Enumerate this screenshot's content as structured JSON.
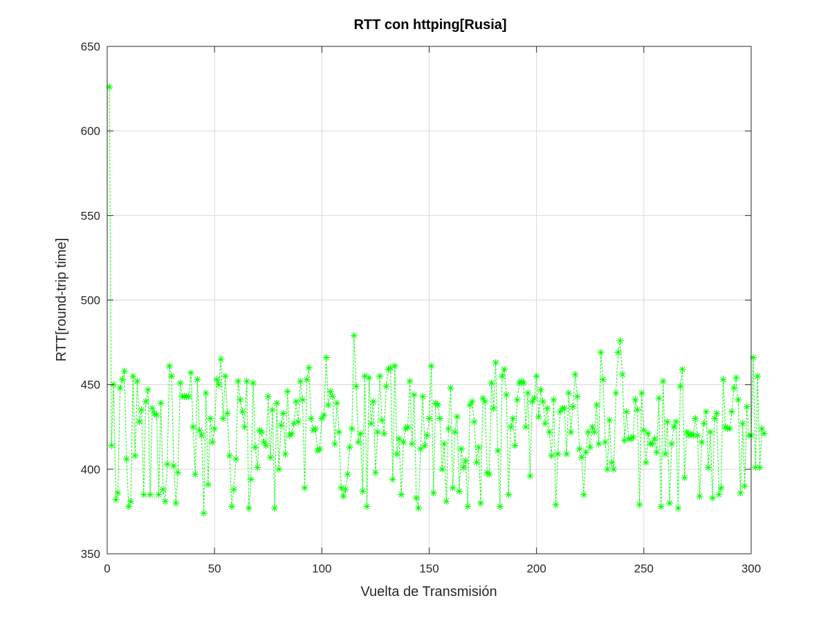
{
  "chart_data": {
    "type": "line",
    "title": "RTT con httping[Rusia]",
    "xlabel": "Vuelta de Transmisión",
    "ylabel": "RTT[round-trip time]",
    "xlim": [
      0,
      300
    ],
    "ylim": [
      350,
      650
    ],
    "xticks": [
      0,
      50,
      100,
      150,
      200,
      250,
      300
    ],
    "yticks": [
      350,
      400,
      450,
      500,
      550,
      600,
      650
    ],
    "grid": true,
    "line_style": "dashed",
    "marker": "asterisk",
    "color": "#00ff00",
    "series": [
      {
        "values": [
          626,
          414,
          450,
          382,
          386,
          448,
          453,
          458,
          406,
          378,
          381,
          455,
          408,
          452,
          428,
          435,
          385,
          440,
          447,
          385,
          436,
          433,
          432,
          385,
          439,
          388,
          381,
          403,
          461,
          455,
          402,
          380,
          398,
          451,
          443,
          443,
          443,
          443,
          457,
          425,
          397,
          453,
          423,
          420,
          374,
          445,
          391,
          430,
          416,
          424,
          453,
          450,
          465,
          430,
          455,
          433,
          408,
          378,
          388,
          406,
          452,
          441,
          434,
          425,
          452,
          377,
          394,
          451,
          413,
          401,
          423,
          422,
          416,
          414,
          443,
          407,
          435,
          377,
          439,
          400,
          426,
          433,
          409,
          446,
          420,
          421,
          427,
          440,
          428,
          452,
          441,
          389,
          453,
          460,
          430,
          423,
          424,
          411,
          412,
          430,
          432,
          466,
          438,
          446,
          443,
          415,
          439,
          422,
          389,
          384,
          388,
          397,
          413,
          424,
          479,
          449,
          416,
          421,
          387,
          455,
          378,
          454,
          427,
          440,
          398,
          422,
          455,
          429,
          421,
          449,
          459,
          460,
          394,
          461,
          409,
          418,
          385,
          416,
          424,
          425,
          452,
          415,
          444,
          383,
          377,
          412,
          443,
          414,
          420,
          430,
          461,
          386,
          439,
          438,
          430,
          400,
          415,
          381,
          424,
          448,
          389,
          422,
          431,
          387,
          412,
          401,
          405,
          378,
          438,
          440,
          428,
          404,
          413,
          380,
          442,
          440,
          398,
          397,
          451,
          436,
          463,
          411,
          378,
          455,
          459,
          444,
          385,
          425,
          430,
          414,
          441,
          451,
          452,
          451,
          425,
          445,
          396,
          440,
          442,
          455,
          431,
          447,
          440,
          427,
          436,
          422,
          408,
          441,
          379,
          409,
          434,
          436,
          436,
          409,
          445,
          422,
          437,
          456,
          443,
          412,
          407,
          385,
          410,
          422,
          413,
          425,
          422,
          438,
          415,
          469,
          453,
          416,
          400,
          429,
          404,
          400,
          445,
          469,
          476,
          456,
          417,
          434,
          418,
          418,
          419,
          441,
          435,
          379,
          445,
          423,
          404,
          421,
          415,
          415,
          418,
          410,
          442,
          378,
          452,
          409,
          428,
          380,
          415,
          425,
          428,
          377,
          449,
          459,
          395,
          422,
          420,
          421,
          420,
          430,
          420,
          384,
          416,
          427,
          434,
          401,
          422,
          383,
          430,
          433,
          385,
          389,
          453,
          425,
          424,
          424,
          434,
          448,
          454,
          441,
          386,
          427,
          390,
          437,
          420,
          420,
          466,
          401,
          455,
          401,
          424,
          421
        ]
      }
    ]
  }
}
